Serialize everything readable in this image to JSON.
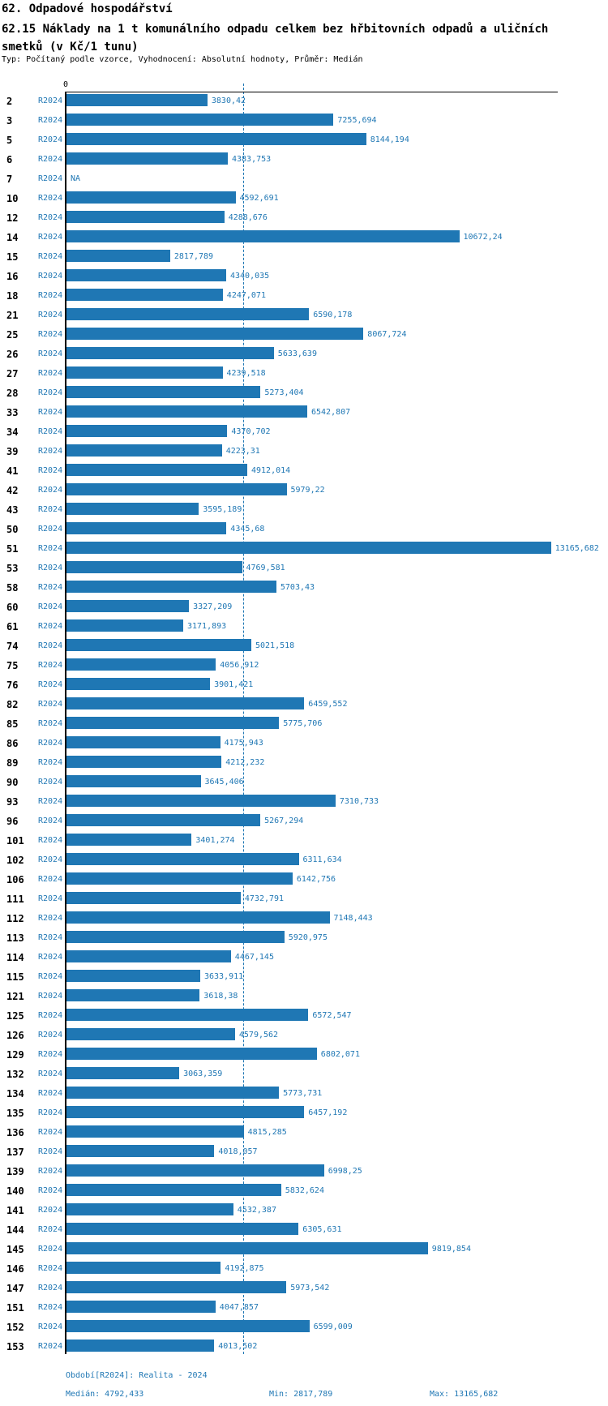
{
  "header": {
    "section_title": "62. Odpadové hospodářství",
    "indicator_title": "62.15 Náklady na 1 t komunálního odpadu celkem bez hřbitovních odpadů a uličních smetků (v Kč/1 tunu)",
    "meta": "Typ: Počítaný podle vzorce, Vyhodnocení: Absolutní hodnoty, Průměr: Medián"
  },
  "chart_data": {
    "type": "bar",
    "orientation": "horizontal",
    "title": "62.15 Náklady na 1 t komunálního odpadu celkem bez hřbitovních odpadů a uličních smetků (v Kč/1 tunu)",
    "series_label": "R2024",
    "axis_zero_label": "0",
    "value_unit": "Kč/1 tunu",
    "xlim": [
      0,
      13370
    ],
    "grid": false,
    "median_value": 4792.433,
    "min_value": 2817.789,
    "max_value": 13165.682,
    "bar_color": "#1f77b4",
    "label_color": "#1f77b4",
    "axis_color": "#000000",
    "rows": [
      {
        "id": "2",
        "value": 3830.42,
        "display": "3830,42"
      },
      {
        "id": "3",
        "value": 7255.694,
        "display": "7255,694"
      },
      {
        "id": "5",
        "value": 8144.194,
        "display": "8144,194"
      },
      {
        "id": "6",
        "value": 4383.753,
        "display": "4383,753"
      },
      {
        "id": "7",
        "value": null,
        "display": "NA"
      },
      {
        "id": "10",
        "value": 4592.691,
        "display": "4592,691"
      },
      {
        "id": "12",
        "value": 4288.676,
        "display": "4288,676"
      },
      {
        "id": "14",
        "value": 10672.24,
        "display": "10672,24"
      },
      {
        "id": "15",
        "value": 2817.789,
        "display": "2817,789"
      },
      {
        "id": "16",
        "value": 4340.035,
        "display": "4340,035"
      },
      {
        "id": "18",
        "value": 4247.071,
        "display": "4247,071"
      },
      {
        "id": "21",
        "value": 6590.178,
        "display": "6590,178"
      },
      {
        "id": "25",
        "value": 8067.724,
        "display": "8067,724"
      },
      {
        "id": "26",
        "value": 5633.639,
        "display": "5633,639"
      },
      {
        "id": "27",
        "value": 4239.518,
        "display": "4239,518"
      },
      {
        "id": "28",
        "value": 5273.404,
        "display": "5273,404"
      },
      {
        "id": "33",
        "value": 6542.807,
        "display": "6542,807"
      },
      {
        "id": "34",
        "value": 4370.702,
        "display": "4370,702"
      },
      {
        "id": "39",
        "value": 4223.31,
        "display": "4223,31"
      },
      {
        "id": "41",
        "value": 4912.014,
        "display": "4912,014"
      },
      {
        "id": "42",
        "value": 5979.22,
        "display": "5979,22"
      },
      {
        "id": "43",
        "value": 3595.189,
        "display": "3595,189"
      },
      {
        "id": "50",
        "value": 4345.68,
        "display": "4345,68"
      },
      {
        "id": "51",
        "value": 13165.682,
        "display": "13165,682"
      },
      {
        "id": "53",
        "value": 4769.581,
        "display": "4769,581"
      },
      {
        "id": "58",
        "value": 5703.43,
        "display": "5703,43"
      },
      {
        "id": "60",
        "value": 3327.209,
        "display": "3327,209"
      },
      {
        "id": "61",
        "value": 3171.893,
        "display": "3171,893"
      },
      {
        "id": "74",
        "value": 5021.518,
        "display": "5021,518"
      },
      {
        "id": "75",
        "value": 4056.912,
        "display": "4056,912"
      },
      {
        "id": "76",
        "value": 3901.421,
        "display": "3901,421"
      },
      {
        "id": "82",
        "value": 6459.552,
        "display": "6459,552"
      },
      {
        "id": "85",
        "value": 5775.706,
        "display": "5775,706"
      },
      {
        "id": "86",
        "value": 4175.943,
        "display": "4175,943"
      },
      {
        "id": "89",
        "value": 4212.232,
        "display": "4212,232"
      },
      {
        "id": "90",
        "value": 3645.406,
        "display": "3645,406"
      },
      {
        "id": "93",
        "value": 7310.733,
        "display": "7310,733"
      },
      {
        "id": "96",
        "value": 5267.294,
        "display": "5267,294"
      },
      {
        "id": "101",
        "value": 3401.274,
        "display": "3401,274"
      },
      {
        "id": "102",
        "value": 6311.634,
        "display": "6311,634"
      },
      {
        "id": "106",
        "value": 6142.756,
        "display": "6142,756"
      },
      {
        "id": "111",
        "value": 4732.791,
        "display": "4732,791"
      },
      {
        "id": "112",
        "value": 7148.443,
        "display": "7148,443"
      },
      {
        "id": "113",
        "value": 5920.975,
        "display": "5920,975"
      },
      {
        "id": "114",
        "value": 4467.145,
        "display": "4467,145"
      },
      {
        "id": "115",
        "value": 3633.911,
        "display": "3633,911"
      },
      {
        "id": "121",
        "value": 3618.38,
        "display": "3618,38"
      },
      {
        "id": "125",
        "value": 6572.547,
        "display": "6572,547"
      },
      {
        "id": "126",
        "value": 4579.562,
        "display": "4579,562"
      },
      {
        "id": "129",
        "value": 6802.071,
        "display": "6802,071"
      },
      {
        "id": "132",
        "value": 3063.359,
        "display": "3063,359"
      },
      {
        "id": "134",
        "value": 5773.731,
        "display": "5773,731"
      },
      {
        "id": "135",
        "value": 6457.192,
        "display": "6457,192"
      },
      {
        "id": "136",
        "value": 4815.285,
        "display": "4815,285"
      },
      {
        "id": "137",
        "value": 4018.057,
        "display": "4018,057"
      },
      {
        "id": "139",
        "value": 6998.25,
        "display": "6998,25"
      },
      {
        "id": "140",
        "value": 5832.624,
        "display": "5832,624"
      },
      {
        "id": "141",
        "value": 4532.387,
        "display": "4532,387"
      },
      {
        "id": "144",
        "value": 6305.631,
        "display": "6305,631"
      },
      {
        "id": "145",
        "value": 9819.854,
        "display": "9819,854"
      },
      {
        "id": "146",
        "value": 4192.875,
        "display": "4192,875"
      },
      {
        "id": "147",
        "value": 5973.542,
        "display": "5973,542"
      },
      {
        "id": "151",
        "value": 4047.857,
        "display": "4047,857"
      },
      {
        "id": "152",
        "value": 6599.009,
        "display": "6599,009"
      },
      {
        "id": "153",
        "value": 4013.502,
        "display": "4013,502"
      }
    ]
  },
  "footer": {
    "period": "Období[R2024]: Realita - 2024",
    "median": "Medián: 4792,433",
    "min": "Min: 2817,789",
    "max": "Max: 13165,682"
  }
}
